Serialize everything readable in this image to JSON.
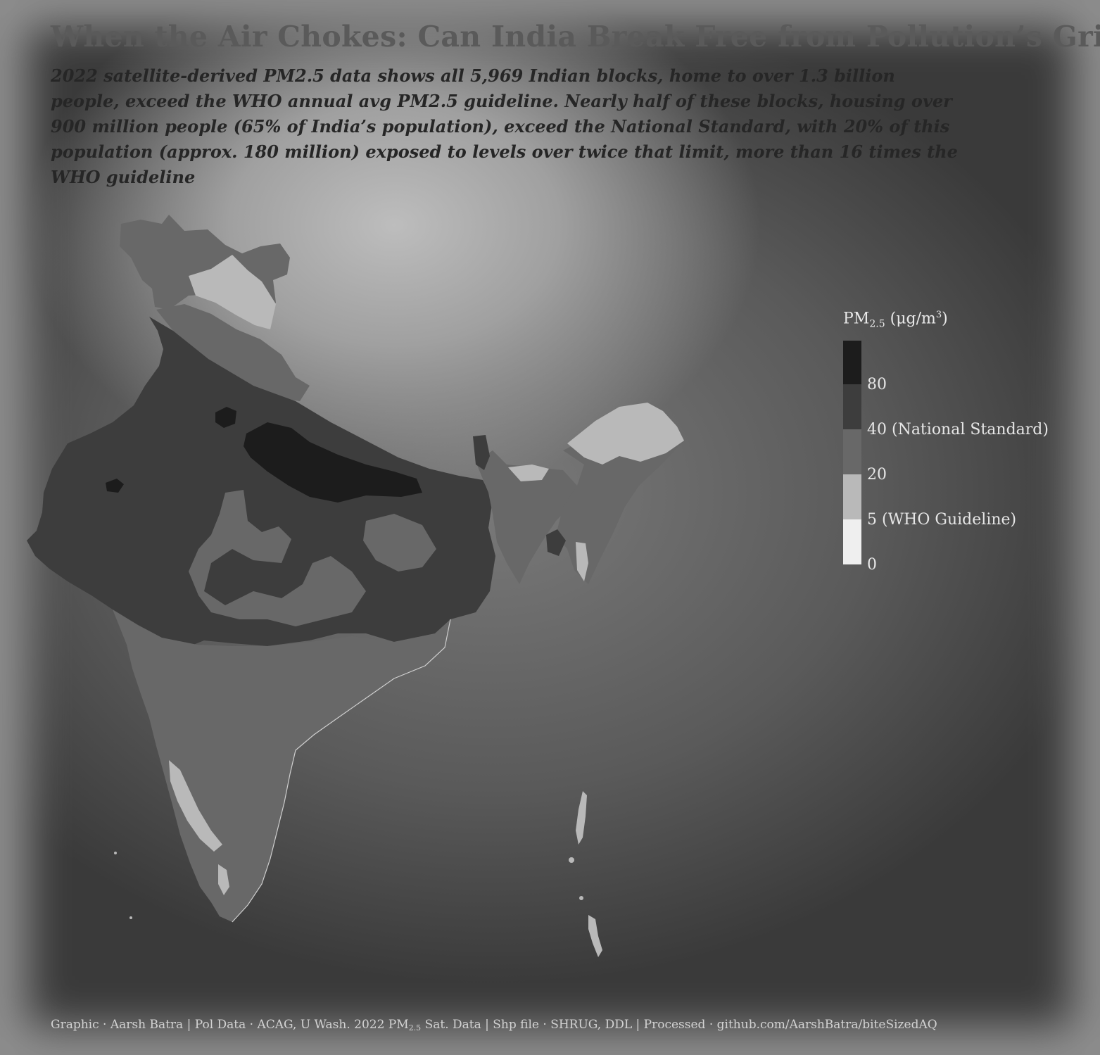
{
  "title": "When the Air Chokes: Can India Break Free from Pollution’s Grip?",
  "subtitle": "2022 satellite-derived PM2.5 data shows all 5,969 Indian blocks, home to over 1.3 billion people, exceed the WHO annual avg PM2.5 guideline. Nearly half of these blocks, housing over 900 million people (65% of India’s population), exceed the National Standard, with 20% of this population (approx. 180 million) exposed to levels over twice that limit, more than 16 times the WHO guideline",
  "legend": {
    "title_main": "PM",
    "title_sub": "2.5",
    "title_unit": "(μg/m",
    "title_unit_sup": "3",
    "title_close": ")",
    "bins": [
      {
        "label": "0",
        "color": "#efefef"
      },
      {
        "label": "5 (WHO Guideline)",
        "color": "#b9b9b9"
      },
      {
        "label": "20",
        "color": "#686868"
      },
      {
        "label": "40 (National Standard)",
        "color": "#3d3d3d"
      },
      {
        "label": "80",
        "color": "#1c1c1c"
      }
    ]
  },
  "map_fill_colors": {
    "who_to_20": "#b9b9b9",
    "20_to_40": "#686868",
    "40_to_80": "#3d3d3d",
    "above_80": "#1c1c1c"
  },
  "footer": {
    "part1": "Graphic · Aarsh Batra | Pol Data · ACAG, U Wash. 2022 PM",
    "part1_sub": "2.5",
    "part2": " Sat. Data | Shp file · SHRUG, DDL | Processed · github.com/AarshBatra/biteSizedAQ"
  }
}
